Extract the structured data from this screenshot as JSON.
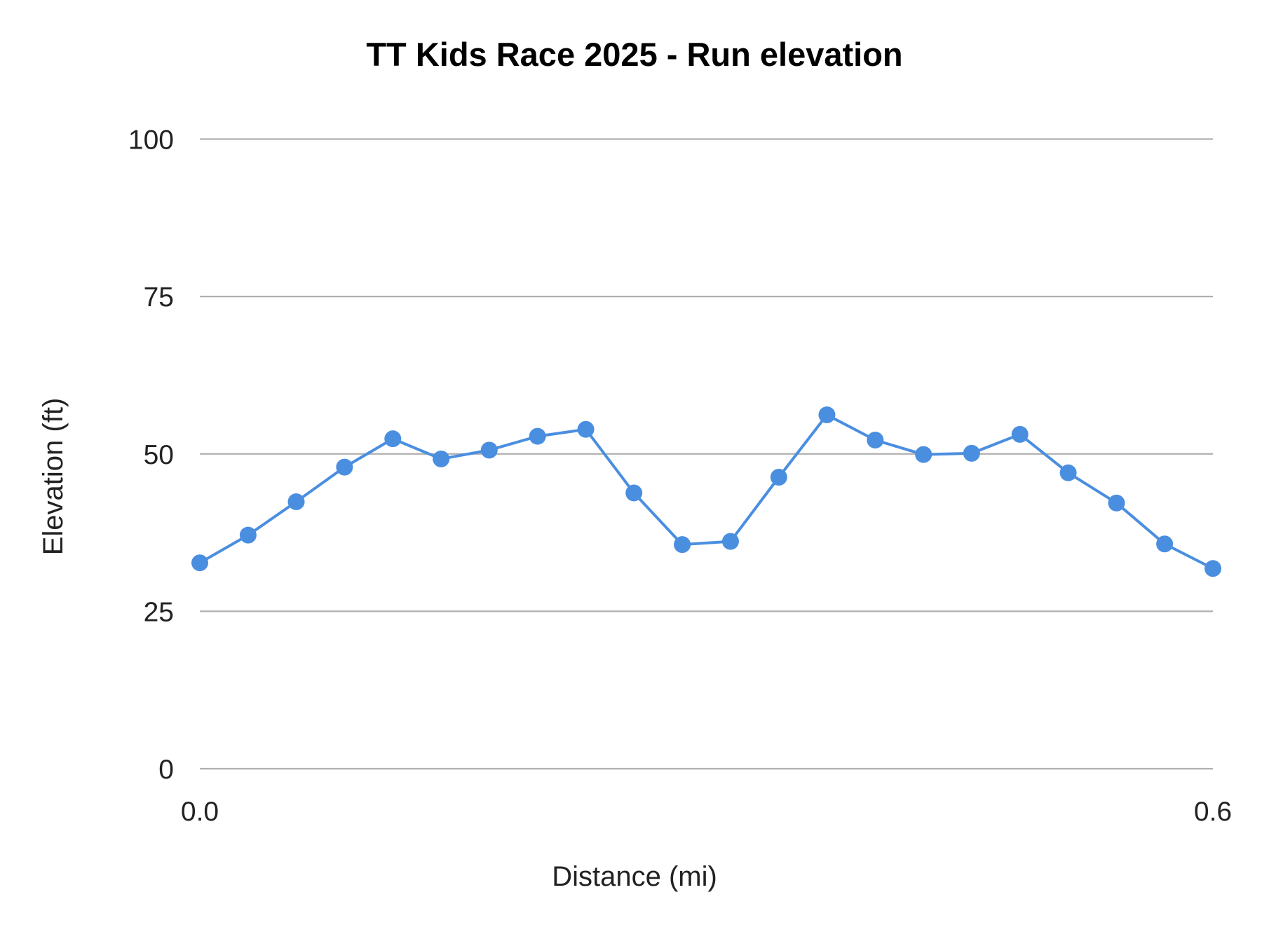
{
  "chart_data": {
    "type": "line",
    "title": "TT Kids Race 2025 - Run elevation",
    "xlabel": "Distance (mi)",
    "ylabel": "Elevation (ft)",
    "xlim": [
      0.0,
      0.6
    ],
    "ylim": [
      0,
      100
    ],
    "x_ticks": [
      "0.0",
      "0.6"
    ],
    "y_ticks": [
      "0",
      "25",
      "50",
      "75",
      "100"
    ],
    "grid": true,
    "legend": "none",
    "color": "#4a8ee0",
    "series": [
      {
        "x": [
          0.0,
          0.0286,
          0.0571,
          0.0857,
          0.1143,
          0.1429,
          0.1714,
          0.2,
          0.2286,
          0.2571,
          0.2857,
          0.3143,
          0.3429,
          0.3714,
          0.4,
          0.4286,
          0.4571,
          0.4857,
          0.5143,
          0.5429,
          0.5714,
          0.6
        ],
        "values": [
          32.7,
          37.1,
          42.4,
          47.9,
          52.4,
          49.2,
          50.6,
          52.8,
          53.9,
          43.8,
          35.6,
          36.1,
          46.3,
          56.2,
          52.2,
          49.9,
          50.1,
          53.1,
          47.0,
          42.2,
          35.7,
          31.8
        ]
      }
    ]
  }
}
